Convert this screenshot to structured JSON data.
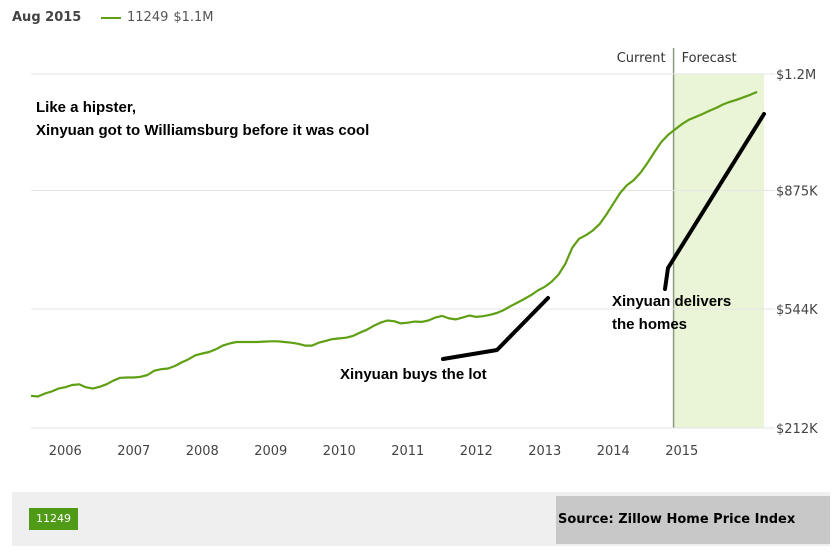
{
  "header": {
    "date": "Aug 2015",
    "legend_zip": "11249",
    "legend_value": "$1.1M"
  },
  "footer": {
    "zip_chip": "11249",
    "source": "Source: Zillow Home Price Index"
  },
  "colors": {
    "line": "#5f9f14",
    "forecast_fill": "#eaf5d7",
    "forecast_divider": "#8a9a80",
    "grid": "#e6e6e6",
    "chip": "#4f9a16",
    "annotation": "#000000"
  },
  "chart_data": {
    "type": "line",
    "region_labels": {
      "current": "Current",
      "forecast": "Forecast"
    },
    "forecast_start": 2014.88,
    "xlim": [
      2005.5,
      2016.2
    ],
    "ylim": [
      212,
      1200
    ],
    "y_ticks": [
      {
        "value": 1200,
        "label": "$1.2M"
      },
      {
        "value": 875,
        "label": "$875K"
      },
      {
        "value": 544,
        "label": "$544K"
      },
      {
        "value": 212,
        "label": "$212K"
      }
    ],
    "x_ticks": [
      {
        "value": 2006,
        "label": "2006"
      },
      {
        "value": 2007,
        "label": "2007"
      },
      {
        "value": 2008,
        "label": "2008"
      },
      {
        "value": 2009,
        "label": "2009"
      },
      {
        "value": 2010,
        "label": "2010"
      },
      {
        "value": 2011,
        "label": "2011"
      },
      {
        "value": 2012,
        "label": "2012"
      },
      {
        "value": 2013,
        "label": "2013"
      },
      {
        "value": 2014,
        "label": "2014"
      },
      {
        "value": 2015,
        "label": "2015"
      }
    ],
    "series": [
      {
        "name": "11249",
        "unit": "$K",
        "x": [
          2005.5,
          2005.6,
          2005.7,
          2005.8,
          2005.9,
          2006.0,
          2006.1,
          2006.2,
          2006.3,
          2006.4,
          2006.5,
          2006.6,
          2006.7,
          2006.8,
          2006.9,
          2007.0,
          2007.1,
          2007.2,
          2007.3,
          2007.4,
          2007.5,
          2007.6,
          2007.7,
          2007.8,
          2007.9,
          2008.0,
          2008.1,
          2008.2,
          2008.3,
          2008.4,
          2008.5,
          2008.6,
          2008.7,
          2008.8,
          2008.9,
          2009.0,
          2009.1,
          2009.2,
          2009.3,
          2009.4,
          2009.5,
          2009.6,
          2009.7,
          2009.8,
          2009.9,
          2010.0,
          2010.1,
          2010.2,
          2010.3,
          2010.4,
          2010.5,
          2010.6,
          2010.7,
          2010.8,
          2010.9,
          2011.0,
          2011.1,
          2011.2,
          2011.3,
          2011.4,
          2011.5,
          2011.6,
          2011.7,
          2011.8,
          2011.9,
          2012.0,
          2012.1,
          2012.2,
          2012.3,
          2012.4,
          2012.5,
          2012.6,
          2012.7,
          2012.8,
          2012.9,
          2013.0,
          2013.1,
          2013.2,
          2013.3,
          2013.4,
          2013.5,
          2013.6,
          2013.7,
          2013.8,
          2013.9,
          2014.0,
          2014.1,
          2014.2,
          2014.3,
          2014.4,
          2014.5,
          2014.6,
          2014.7,
          2014.8,
          2014.9,
          2015.0,
          2015.1,
          2015.2,
          2015.3,
          2015.4,
          2015.5,
          2015.6,
          2015.7,
          2015.8,
          2015.9,
          2016.0,
          2016.1
        ],
        "values": [
          302,
          300,
          308,
          314,
          322,
          326,
          332,
          334,
          326,
          322,
          327,
          334,
          344,
          352,
          353,
          353,
          355,
          360,
          372,
          376,
          378,
          385,
          395,
          404,
          415,
          420,
          424,
          432,
          442,
          448,
          452,
          452,
          452,
          452,
          453,
          454,
          454,
          452,
          450,
          447,
          442,
          442,
          450,
          455,
          460,
          462,
          464,
          469,
          478,
          486,
          497,
          506,
          512,
          510,
          504,
          506,
          509,
          508,
          512,
          520,
          525,
          518,
          515,
          520,
          526,
          522,
          524,
          528,
          533,
          541,
          552,
          562,
          572,
          583,
          596,
          606,
          620,
          640,
          670,
          715,
          740,
          750,
          763,
          781,
          808,
          838,
          868,
          890,
          904,
          925,
          952,
          982,
          1010,
          1030,
          1045,
          1060,
          1072,
          1080,
          1088,
          1097,
          1105,
          1115,
          1122,
          1128,
          1135,
          1142,
          1150
        ]
      }
    ],
    "annotations": [
      {
        "text": "Like a hipster,\nXinyuan got to Williamsburg before it was cool"
      },
      {
        "text": "Xinyuan buys the lot"
      },
      {
        "text": "Xinyuan delivers\nthe homes"
      }
    ]
  }
}
